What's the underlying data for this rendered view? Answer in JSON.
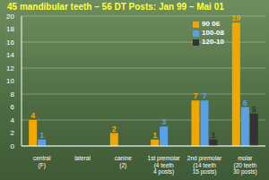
{
  "chart_data": {
    "type": "bar",
    "title": "45 mandibular teeth – 56 DT Posts: Jan 99 – Mai 01",
    "categories": [
      "central\n(F)",
      "lateral",
      "canine\n(2)",
      "1st premolar\n(4 teeth\n4 posts)",
      "2nd premolar\n(14 teeth\n15 posts)",
      "molar\n(20 teeth\n30 posts)"
    ],
    "series": [
      {
        "name": "90 06",
        "color": "#f0a800",
        "values": [
          4,
          null,
          2,
          1,
          7,
          19
        ]
      },
      {
        "name": "100-08",
        "color": "#5aa0e6",
        "values": [
          1,
          null,
          null,
          3,
          7,
          6
        ]
      },
      {
        "name": "120-10",
        "color": "#333333",
        "values": [
          null,
          null,
          null,
          null,
          1,
          5
        ]
      }
    ],
    "ylim": [
      0,
      20
    ],
    "yticks": [
      0,
      2,
      4,
      6,
      8,
      10,
      12,
      14,
      16,
      18,
      20
    ],
    "grid": true,
    "legend": "top right",
    "data_labels": true
  }
}
